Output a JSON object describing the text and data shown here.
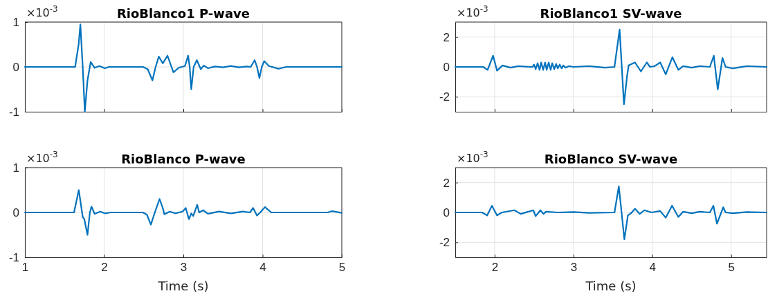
{
  "chart_data": [
    {
      "type": "line",
      "title": "RioBlanco1 P-wave",
      "annotations": [
        "×10$^{-3}$"
      ],
      "xlim": [
        1,
        5
      ],
      "xticks": [
        1,
        2,
        3,
        4,
        5
      ],
      "ylim": [
        -1,
        1
      ],
      "yticks": [
        -1,
        0,
        1
      ],
      "grid": true,
      "tick_labels": "y",
      "series": [
        {
          "color": "#0072bd",
          "x": [
            1,
            1.634,
            1.678,
            1.7,
            1.73,
            1.756,
            1.79,
            1.83,
            1.88,
            1.94,
            2.01,
            2.06,
            2.49,
            2.55,
            2.61,
            2.65,
            2.69,
            2.74,
            2.8,
            2.875,
            2.94,
            3.02,
            3.06,
            3.08,
            3.1,
            3.13,
            3.17,
            3.22,
            3.26,
            3.31,
            3.4,
            3.5,
            3.6,
            3.7,
            3.8,
            3.85,
            3.9,
            3.93,
            3.96,
            3.99,
            4.02,
            4.08,
            4.2,
            4.3,
            5
          ],
          "values": [
            0,
            0,
            0.5,
            0.95,
            0,
            -1,
            -0.3,
            0.11,
            -0.02,
            0.02,
            -0.03,
            0,
            0,
            -0.05,
            -0.3,
            0,
            0.23,
            0.08,
            0.25,
            -0.12,
            -0.02,
            0.02,
            0.25,
            0,
            -0.5,
            0,
            0.15,
            -0.05,
            0.03,
            -0.03,
            0.01,
            -0.01,
            0.02,
            -0.01,
            0.01,
            0,
            0.15,
            0,
            -0.25,
            0,
            0.13,
            0.02,
            -0.04,
            0,
            0
          ]
        }
      ]
    },
    {
      "type": "line",
      "title": "RioBlanco1 SV-wave",
      "annotations": [
        "×10$^{-3}$"
      ],
      "xlim": [
        1.5,
        5.45
      ],
      "xticks": [
        2,
        3,
        4,
        5
      ],
      "ylim": [
        -3,
        3
      ],
      "yticks": [
        -2,
        0,
        2
      ],
      "grid": true,
      "tick_labels": "y",
      "series": [
        {
          "color": "#0072bd",
          "x": [
            1.5,
            1.855,
            1.91,
            1.98,
            2.03,
            2.1,
            2.2,
            2.3,
            2.45,
            2.48,
            2.5,
            2.52,
            2.545,
            2.57,
            2.59,
            2.615,
            2.64,
            2.66,
            2.685,
            2.71,
            2.73,
            2.755,
            2.78,
            2.8,
            2.825,
            2.85,
            2.87,
            2.9,
            2.94,
            3.0,
            3.2,
            3.4,
            3.52,
            3.585,
            3.64,
            3.68,
            3.7,
            3.78,
            3.855,
            3.93,
            3.97,
            4.03,
            4.1,
            4.17,
            4.255,
            4.33,
            4.39,
            4.5,
            4.6,
            4.73,
            4.78,
            4.83,
            4.89,
            4.93,
            5.02,
            5.2,
            5.45
          ],
          "values": [
            0,
            0,
            -0.2,
            0.75,
            -0.25,
            0.1,
            -0.05,
            0.05,
            0,
            0,
            0.15,
            -0.15,
            0.25,
            -0.2,
            0.3,
            -0.2,
            0.3,
            -0.2,
            0.3,
            -0.2,
            0.25,
            -0.15,
            0.2,
            -0.1,
            0.15,
            -0.1,
            0.1,
            -0.05,
            0.05,
            0,
            0.05,
            -0.05,
            0,
            2.5,
            -2.5,
            -0.6,
            0.1,
            0.3,
            -0.3,
            0.3,
            0,
            0.05,
            0.3,
            -0.5,
            0.65,
            -0.2,
            0.05,
            -0.05,
            0.05,
            0,
            0.75,
            -1.5,
            0.6,
            0,
            -0.1,
            0.05,
            0
          ]
        }
      ]
    },
    {
      "type": "line",
      "title": "RioBlanco P-wave",
      "xlabel": "Time (s)",
      "annotations": [
        "×10$^{-3}$"
      ],
      "xlim": [
        1,
        5
      ],
      "xticks": [
        1,
        2,
        3,
        4,
        5
      ],
      "ylim": [
        -1,
        1
      ],
      "yticks": [
        -1,
        0,
        1
      ],
      "grid": true,
      "series": [
        {
          "color": "#0072bd",
          "x": [
            1,
            1.62,
            1.68,
            1.73,
            1.75,
            1.79,
            1.82,
            1.84,
            1.88,
            1.95,
            2.01,
            2.08,
            2.49,
            2.54,
            2.59,
            2.64,
            2.7,
            2.74,
            2.76,
            2.83,
            2.9,
            2.99,
            3.03,
            3.07,
            3.1,
            3.125,
            3.175,
            3.2,
            3.25,
            3.31,
            3.45,
            3.6,
            3.75,
            3.84,
            3.88,
            3.93,
            3.97,
            4.03,
            4.11,
            4.82,
            4.88,
            5.0
          ],
          "values": [
            0,
            0,
            0.5,
            -0.1,
            -0.15,
            -0.5,
            0,
            0.13,
            -0.03,
            0.02,
            -0.02,
            0,
            0,
            -0.05,
            -0.27,
            0,
            0.3,
            0.1,
            -0.04,
            0.02,
            -0.02,
            0.02,
            0.1,
            -0.15,
            -0.02,
            -0.08,
            0.17,
            0,
            0.05,
            -0.03,
            0.02,
            -0.02,
            0.02,
            0,
            0.1,
            -0.07,
            0,
            0.12,
            0,
            0,
            0.03,
            -0.01
          ]
        }
      ]
    },
    {
      "type": "line",
      "title": "RioBlanco SV-wave",
      "xlabel": "Time (s)",
      "annotations": [
        "×10$^{-3}$"
      ],
      "xlim": [
        1.5,
        5.45
      ],
      "xticks": [
        2,
        3,
        4,
        5
      ],
      "ylim": [
        -3,
        3
      ],
      "yticks": [
        -2,
        0,
        2
      ],
      "grid": true,
      "series": [
        {
          "color": "#0072bd",
          "x": [
            1.5,
            1.84,
            1.905,
            1.965,
            2.03,
            2.09,
            2.25,
            2.33,
            2.49,
            2.52,
            2.58,
            2.62,
            2.65,
            2.8,
            3.0,
            3.2,
            3.52,
            3.575,
            3.61,
            3.645,
            3.69,
            3.74,
            3.78,
            3.84,
            3.9,
            3.99,
            4.1,
            4.17,
            4.25,
            4.33,
            4.39,
            4.5,
            4.6,
            4.73,
            4.775,
            4.82,
            4.9,
            4.93,
            5.02,
            5.2,
            5.45
          ],
          "values": [
            0,
            0,
            -0.2,
            0.45,
            -0.2,
            0,
            0.15,
            -0.1,
            0.15,
            -0.25,
            0.15,
            -0.1,
            0.05,
            0,
            0.03,
            -0.03,
            0,
            1.75,
            0,
            -1.8,
            -0.2,
            0,
            0.25,
            -0.1,
            0.15,
            0,
            0.1,
            -0.35,
            0.45,
            -0.3,
            0.05,
            -0.05,
            0.05,
            0,
            0.45,
            -0.75,
            0.35,
            0,
            -0.05,
            0.03,
            0
          ]
        }
      ]
    }
  ]
}
